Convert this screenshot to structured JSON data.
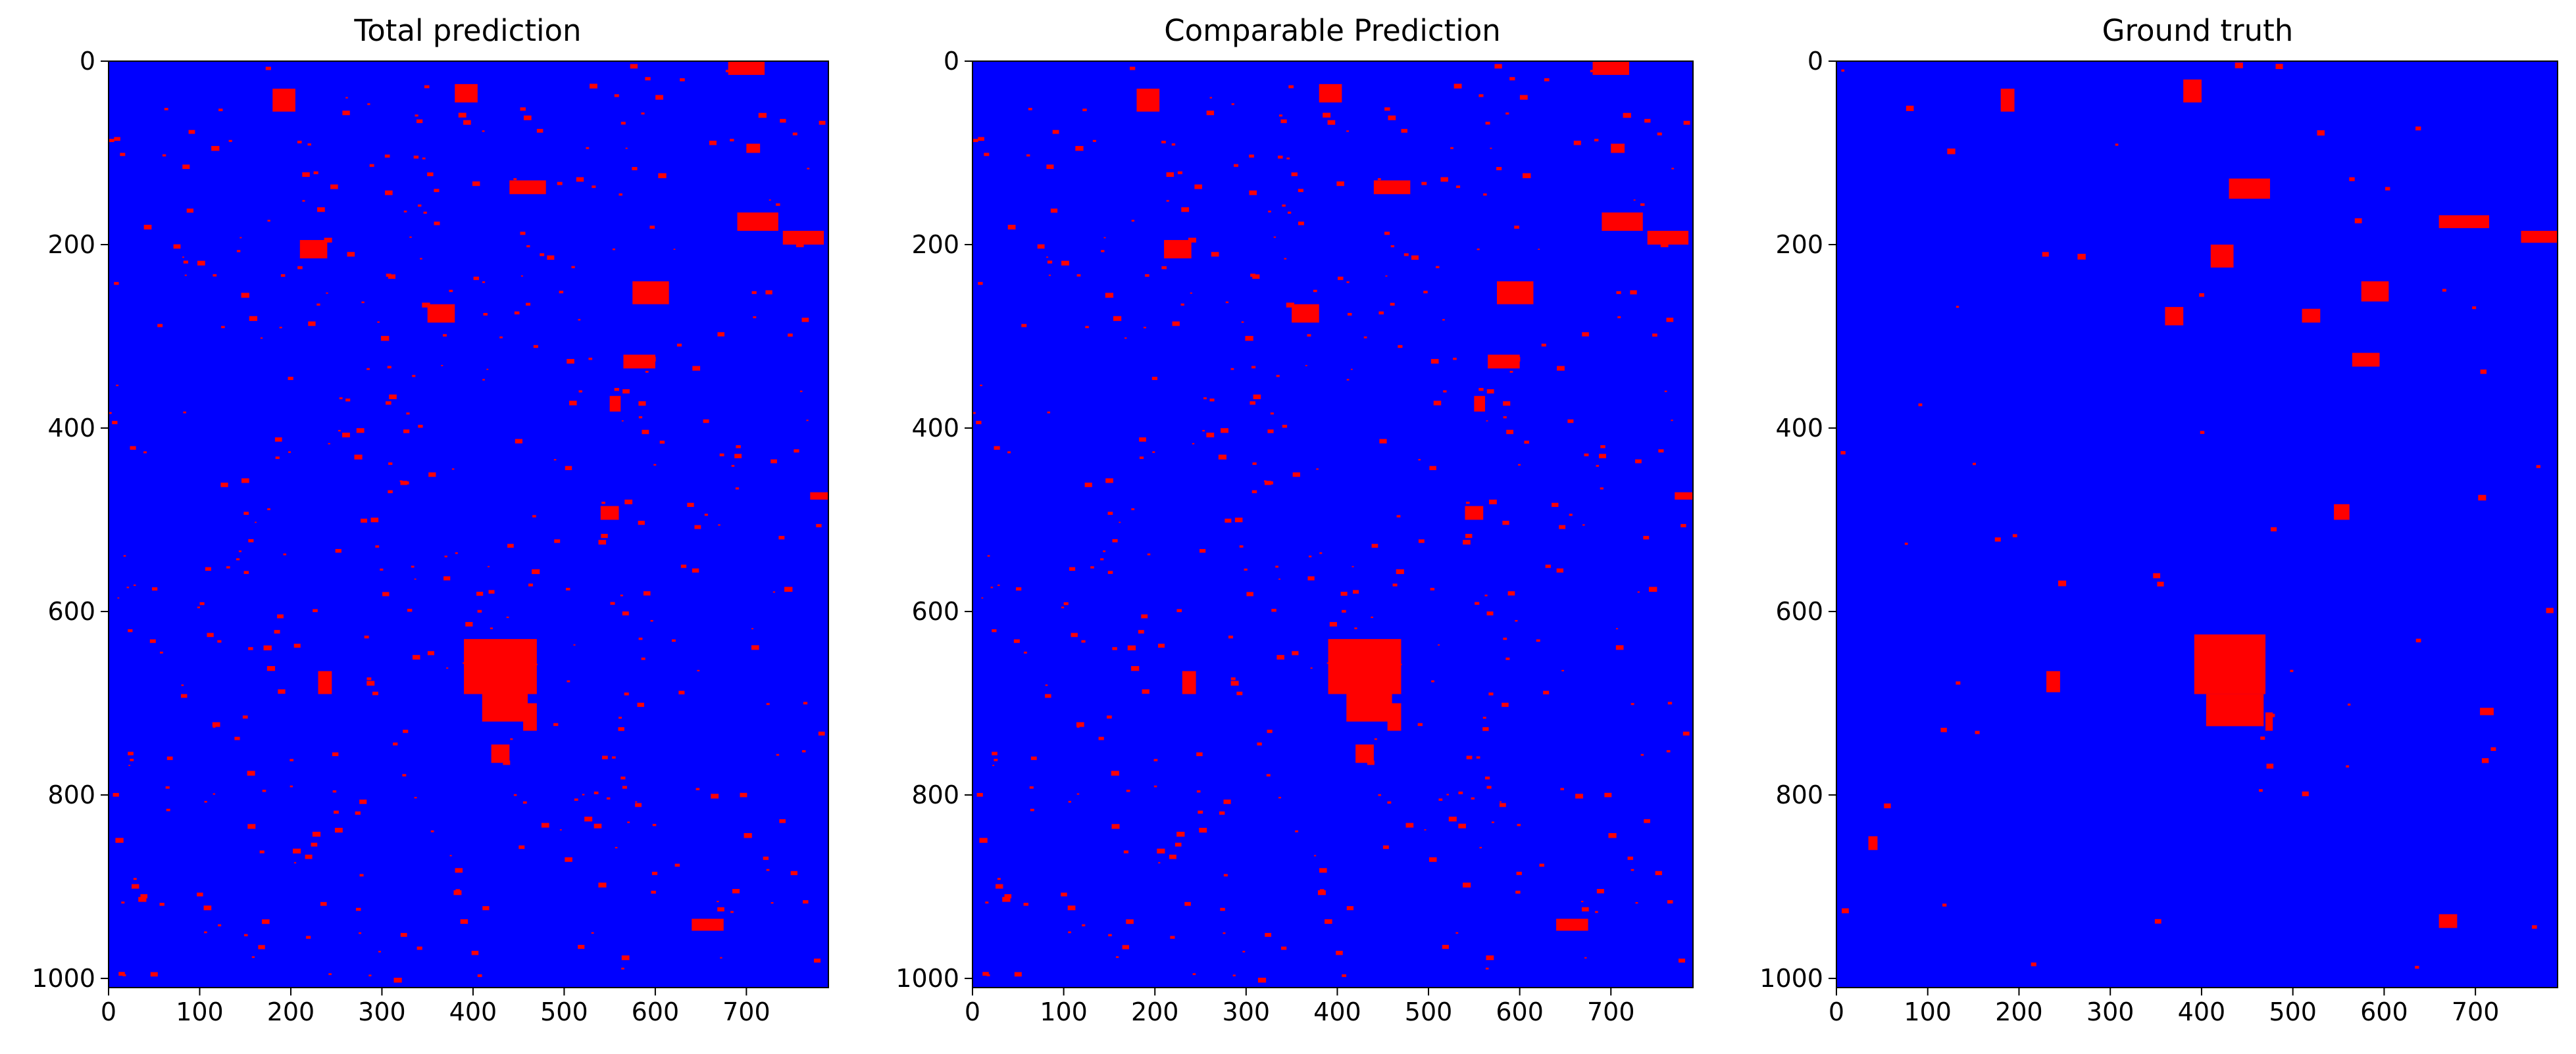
{
  "figure": {
    "panel_titles": [
      "Total prediction",
      "Comparable Prediction",
      "Ground truth"
    ]
  },
  "colors": {
    "background": "#0000ff",
    "foreground": "#ff0000",
    "axes": "#000000"
  },
  "chart_data": [
    {
      "type": "heatmap",
      "title": "Total prediction",
      "xlim": [
        0,
        790
      ],
      "ylim": [
        1010,
        0
      ],
      "xticks": [
        0,
        100,
        200,
        300,
        400,
        500,
        600,
        700
      ],
      "yticks": [
        0,
        200,
        400,
        600,
        800,
        1000
      ],
      "classes": [
        "background",
        "positive"
      ],
      "regions": [
        {
          "x0": 390,
          "y0": 630,
          "x1": 470,
          "y1": 690
        },
        {
          "x0": 410,
          "y0": 680,
          "x1": 460,
          "y1": 720
        },
        {
          "x0": 575,
          "y0": 240,
          "x1": 615,
          "y1": 265
        },
        {
          "x0": 565,
          "y0": 320,
          "x1": 600,
          "y1": 335
        },
        {
          "x0": 550,
          "y0": 365,
          "x1": 562,
          "y1": 382
        },
        {
          "x0": 540,
          "y0": 485,
          "x1": 560,
          "y1": 500
        },
        {
          "x0": 380,
          "y0": 25,
          "x1": 405,
          "y1": 45
        },
        {
          "x0": 680,
          "y0": 0,
          "x1": 720,
          "y1": 15
        },
        {
          "x0": 690,
          "y0": 165,
          "x1": 735,
          "y1": 185
        },
        {
          "x0": 740,
          "y0": 185,
          "x1": 785,
          "y1": 200
        },
        {
          "x0": 440,
          "y0": 130,
          "x1": 480,
          "y1": 145
        },
        {
          "x0": 350,
          "y0": 265,
          "x1": 380,
          "y1": 285
        },
        {
          "x0": 180,
          "y0": 30,
          "x1": 205,
          "y1": 55
        },
        {
          "x0": 420,
          "y0": 745,
          "x1": 440,
          "y1": 765
        },
        {
          "x0": 230,
          "y0": 665,
          "x1": 245,
          "y1": 690
        },
        {
          "x0": 640,
          "y0": 935,
          "x1": 675,
          "y1": 948
        },
        {
          "x0": 455,
          "y0": 700,
          "x1": 470,
          "y1": 730
        },
        {
          "x0": 210,
          "y0": 195,
          "x1": 240,
          "y1": 215
        },
        {
          "x0": 700,
          "y0": 90,
          "x1": 715,
          "y1": 100
        },
        {
          "x0": 770,
          "y0": 470,
          "x1": 790,
          "y1": 478
        }
      ],
      "speckle": true
    },
    {
      "type": "heatmap",
      "title": "Comparable Prediction",
      "xlim": [
        0,
        790
      ],
      "ylim": [
        1010,
        0
      ],
      "xticks": [
        0,
        100,
        200,
        300,
        400,
        500,
        600,
        700
      ],
      "yticks": [
        0,
        200,
        400,
        600,
        800,
        1000
      ],
      "classes": [
        "background",
        "positive"
      ],
      "regions": [
        {
          "x0": 390,
          "y0": 630,
          "x1": 470,
          "y1": 690
        },
        {
          "x0": 410,
          "y0": 680,
          "x1": 460,
          "y1": 720
        },
        {
          "x0": 575,
          "y0": 240,
          "x1": 615,
          "y1": 265
        },
        {
          "x0": 565,
          "y0": 320,
          "x1": 600,
          "y1": 335
        },
        {
          "x0": 550,
          "y0": 365,
          "x1": 562,
          "y1": 382
        },
        {
          "x0": 540,
          "y0": 485,
          "x1": 560,
          "y1": 500
        },
        {
          "x0": 380,
          "y0": 25,
          "x1": 405,
          "y1": 45
        },
        {
          "x0": 680,
          "y0": 0,
          "x1": 720,
          "y1": 15
        },
        {
          "x0": 690,
          "y0": 165,
          "x1": 735,
          "y1": 185
        },
        {
          "x0": 740,
          "y0": 185,
          "x1": 785,
          "y1": 200
        },
        {
          "x0": 440,
          "y0": 130,
          "x1": 480,
          "y1": 145
        },
        {
          "x0": 350,
          "y0": 265,
          "x1": 380,
          "y1": 285
        },
        {
          "x0": 180,
          "y0": 30,
          "x1": 205,
          "y1": 55
        },
        {
          "x0": 420,
          "y0": 745,
          "x1": 440,
          "y1": 765
        },
        {
          "x0": 230,
          "y0": 665,
          "x1": 245,
          "y1": 690
        },
        {
          "x0": 640,
          "y0": 935,
          "x1": 675,
          "y1": 948
        },
        {
          "x0": 455,
          "y0": 700,
          "x1": 470,
          "y1": 730
        },
        {
          "x0": 210,
          "y0": 195,
          "x1": 240,
          "y1": 215
        },
        {
          "x0": 700,
          "y0": 90,
          "x1": 715,
          "y1": 100
        },
        {
          "x0": 770,
          "y0": 470,
          "x1": 790,
          "y1": 478
        }
      ],
      "speckle": true
    },
    {
      "type": "heatmap",
      "title": "Ground truth",
      "xlim": [
        0,
        790
      ],
      "ylim": [
        1010,
        0
      ],
      "xticks": [
        0,
        100,
        200,
        300,
        400,
        500,
        600,
        700
      ],
      "yticks": [
        0,
        200,
        400,
        600,
        800,
        1000
      ],
      "classes": [
        "background",
        "positive"
      ],
      "regions": [
        {
          "x0": 392,
          "y0": 625,
          "x1": 470,
          "y1": 690
        },
        {
          "x0": 405,
          "y0": 690,
          "x1": 468,
          "y1": 725
        },
        {
          "x0": 575,
          "y0": 240,
          "x1": 605,
          "y1": 262
        },
        {
          "x0": 565,
          "y0": 318,
          "x1": 595,
          "y1": 333
        },
        {
          "x0": 545,
          "y0": 483,
          "x1": 562,
          "y1": 500
        },
        {
          "x0": 380,
          "y0": 20,
          "x1": 400,
          "y1": 45
        },
        {
          "x0": 430,
          "y0": 128,
          "x1": 475,
          "y1": 150
        },
        {
          "x0": 410,
          "y0": 200,
          "x1": 435,
          "y1": 225
        },
        {
          "x0": 660,
          "y0": 168,
          "x1": 715,
          "y1": 182
        },
        {
          "x0": 750,
          "y0": 185,
          "x1": 790,
          "y1": 198
        },
        {
          "x0": 180,
          "y0": 30,
          "x1": 195,
          "y1": 55
        },
        {
          "x0": 360,
          "y0": 268,
          "x1": 380,
          "y1": 288
        },
        {
          "x0": 510,
          "y0": 270,
          "x1": 530,
          "y1": 285
        },
        {
          "x0": 230,
          "y0": 665,
          "x1": 245,
          "y1": 688
        },
        {
          "x0": 660,
          "y0": 930,
          "x1": 680,
          "y1": 945
        },
        {
          "x0": 470,
          "y0": 710,
          "x1": 478,
          "y1": 730
        },
        {
          "x0": 705,
          "y0": 705,
          "x1": 720,
          "y1": 713
        },
        {
          "x0": 35,
          "y0": 845,
          "x1": 45,
          "y1": 860
        }
      ],
      "speckle": false
    }
  ]
}
